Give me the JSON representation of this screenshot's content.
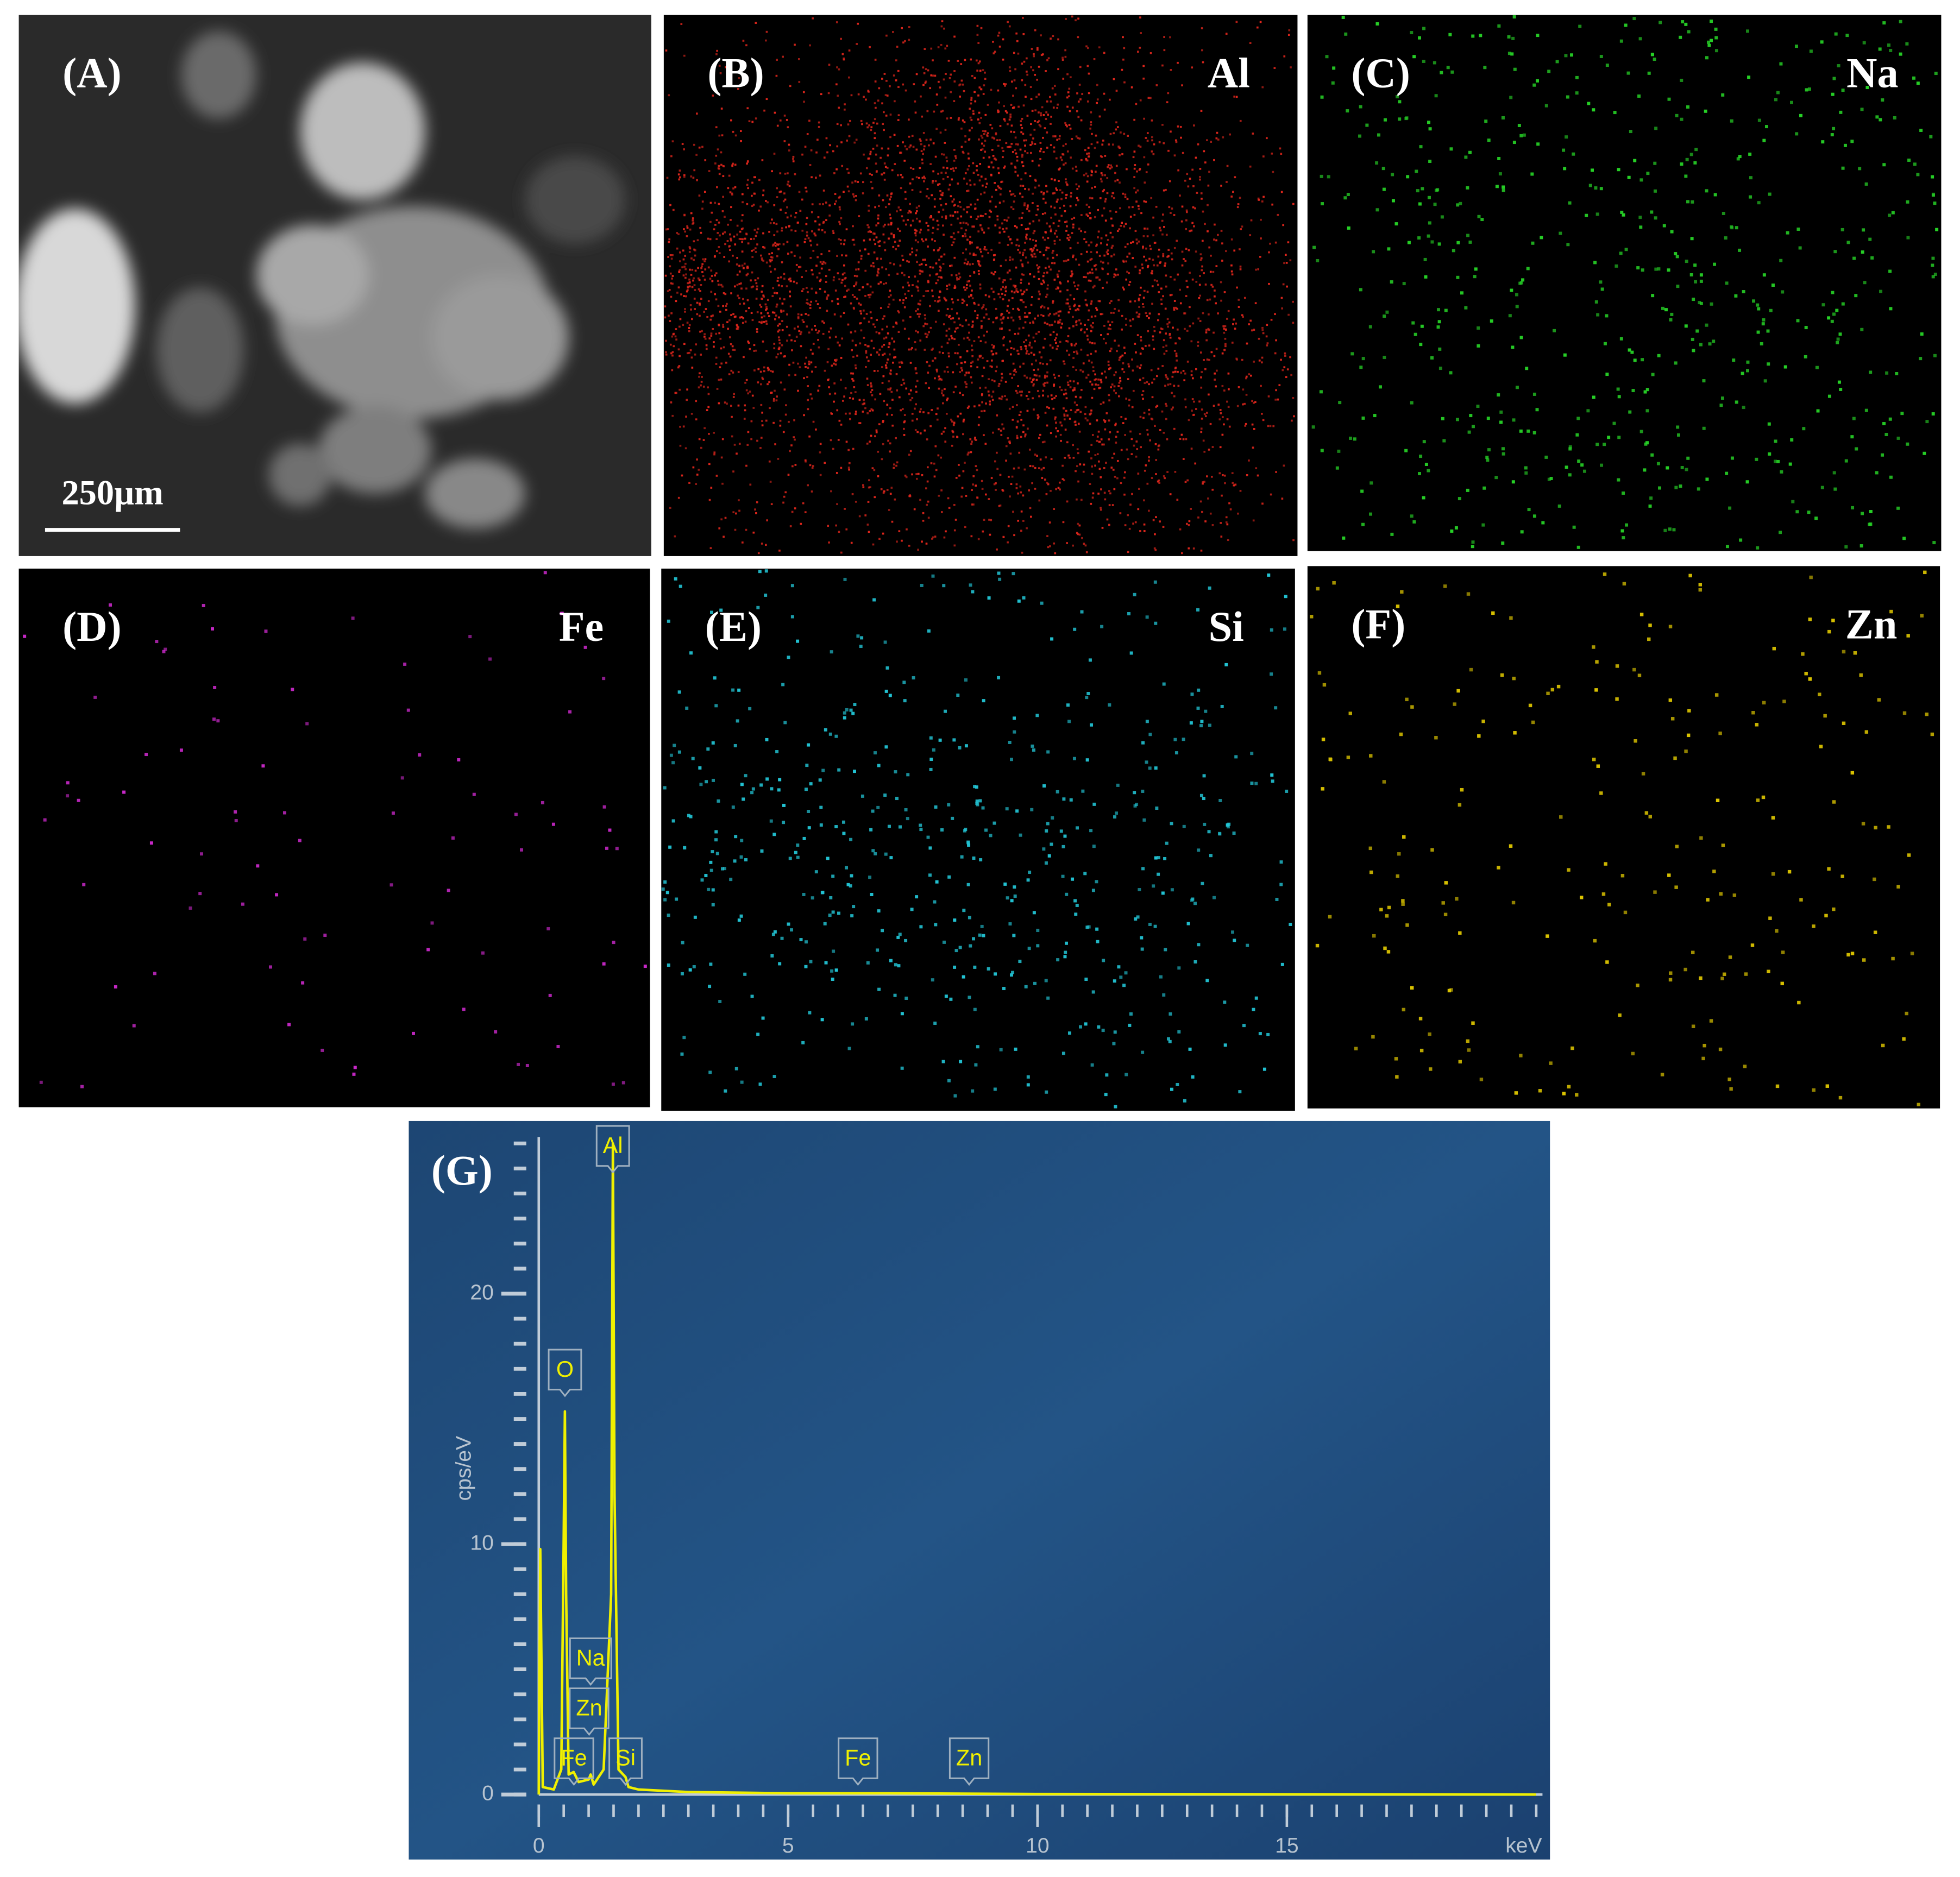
{
  "panels": [
    {
      "label": "(A)",
      "scale_bar": "250µm"
    },
    {
      "label": "(B)",
      "element": "Al",
      "color": "#e0261c"
    },
    {
      "label": "(C)",
      "element": "Na",
      "color": "#26d026"
    },
    {
      "label": "(D)",
      "element": "Fe",
      "color": "#c828c8"
    },
    {
      "label": "(E)",
      "element": "Si",
      "color": "#22c4d4"
    },
    {
      "label": "(F)",
      "element": "Zn",
      "color": "#dcc400"
    }
  ],
  "chart_data": {
    "type": "line",
    "panel_label": "(G)",
    "ylabel": "cps/eV",
    "xlabel": "keV",
    "x": [
      0,
      0.03,
      0.08,
      0.3,
      0.45,
      0.5,
      0.525,
      0.55,
      0.6,
      0.7,
      0.8,
      1.0,
      1.04,
      1.1,
      1.3,
      1.45,
      1.486,
      1.52,
      1.6,
      1.74,
      1.8,
      2.0,
      3,
      5,
      7,
      10,
      15,
      20
    ],
    "values": [
      0,
      9.8,
      0.3,
      0.2,
      1,
      10,
      15.3,
      8,
      0.8,
      0.9,
      0.5,
      0.6,
      0.8,
      0.4,
      1,
      8,
      26,
      12,
      1,
      0.7,
      0.3,
      0.2,
      0.1,
      0.05,
      0.05,
      0.02,
      0.01,
      0
    ],
    "color": "#f0f000",
    "xlim": [
      0,
      20
    ],
    "xticks": [
      0,
      5,
      10,
      15
    ],
    "ylim": [
      0,
      26
    ],
    "yticks": [
      0,
      10,
      20
    ],
    "annotations": [
      {
        "text": "O",
        "x": 0.525
      },
      {
        "text": "Al",
        "x": 1.486
      },
      {
        "text": "Na",
        "x": 1.04
      },
      {
        "text": "Zn",
        "x": 1.01
      },
      {
        "text": "Fe",
        "x": 0.705
      },
      {
        "text": "Si",
        "x": 1.74
      },
      {
        "text": "Fe",
        "x": 6.4
      },
      {
        "text": "Zn",
        "x": 8.63
      }
    ]
  }
}
